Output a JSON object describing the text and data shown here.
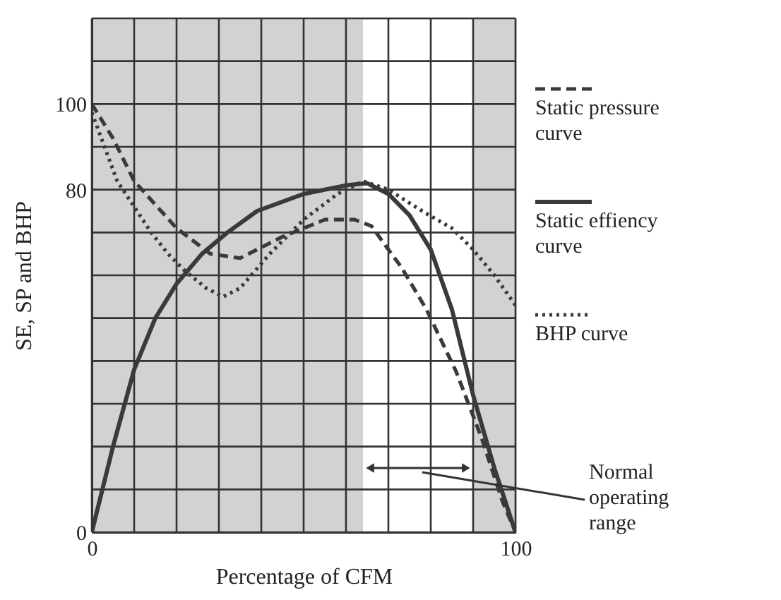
{
  "chart_data": {
    "type": "line",
    "xlabel": "Percentage of CFM",
    "ylabel": "SE, SP and BHP",
    "xlim": [
      0,
      100
    ],
    "ylim": [
      0,
      120
    ],
    "xticks": [
      0,
      {
        "value": 10,
        "label": null
      },
      {
        "value": 20,
        "label": null
      },
      {
        "value": 30,
        "label": null
      },
      {
        "value": 40,
        "label": null
      },
      {
        "value": 50,
        "label": null
      },
      {
        "value": 60,
        "label": null
      },
      {
        "value": 70,
        "label": null
      },
      {
        "value": 80,
        "label": null
      },
      {
        "value": 90,
        "label": null
      },
      100
    ],
    "yticks": [
      0,
      {
        "value": 10,
        "label": null
      },
      {
        "value": 20,
        "label": null
      },
      {
        "value": 30,
        "label": null
      },
      {
        "value": 40,
        "label": null
      },
      {
        "value": 50,
        "label": null
      },
      {
        "value": 60,
        "label": null
      },
      {
        "value": 70,
        "label": null
      },
      80,
      {
        "value": 90,
        "label": null
      },
      100,
      {
        "value": 110,
        "label": null
      },
      {
        "value": 120,
        "label": null
      }
    ],
    "grid": true,
    "legend": "right",
    "series": [
      {
        "name": "Static pressure curve",
        "color": "#3a3a3a",
        "line_style": "dashed",
        "x": [
          0,
          5,
          10,
          20,
          28,
          35,
          45,
          55,
          62,
          66,
          70,
          73,
          79,
          86,
          92,
          97,
          100
        ],
        "values": [
          100,
          92,
          82,
          71,
          65,
          64,
          69,
          73,
          73,
          71.5,
          66,
          62,
          52,
          37.5,
          22,
          7,
          0
        ]
      },
      {
        "name": "Static effiency curve",
        "color": "#3a3a3a",
        "line_style": "solid",
        "x": [
          0,
          5,
          10,
          15,
          20,
          26,
          32,
          39,
          50,
          60,
          65,
          70,
          75,
          80,
          85,
          90,
          95,
          100
        ],
        "values": [
          0,
          20,
          38,
          50,
          58,
          65,
          70,
          75,
          79,
          81,
          81.5,
          79,
          74,
          66,
          52,
          32,
          15,
          0
        ]
      },
      {
        "name": "BHP curve",
        "color": "#3a3a3a",
        "line_style": "dotted",
        "x": [
          0,
          3,
          6,
          10,
          14,
          18,
          22,
          27,
          31,
          35,
          42,
          50,
          58,
          64,
          70,
          78,
          85,
          90,
          95,
          100
        ],
        "values": [
          98,
          90,
          82,
          76,
          70,
          65,
          61,
          57,
          55,
          57,
          65,
          73,
          79,
          82,
          80,
          75,
          71,
          66,
          60,
          53
        ]
      },
      {
        "type": "line",
        "color": "#333333",
        "line_style": "solid",
        "marker": "triangle",
        "x": [
          66,
          88
        ],
        "values": [
          15,
          15
        ]
      }
    ],
    "bands": [
      {
        "axis": "x",
        "from": 0,
        "to": 64,
        "color": "#d2d2d2"
      },
      {
        "axis": "x",
        "from": 90,
        "to": 100,
        "color": "#d2d2d2"
      }
    ],
    "annotations": [
      {
        "text": "Normal operating range",
        "x": 78,
        "y": 15
      }
    ]
  }
}
